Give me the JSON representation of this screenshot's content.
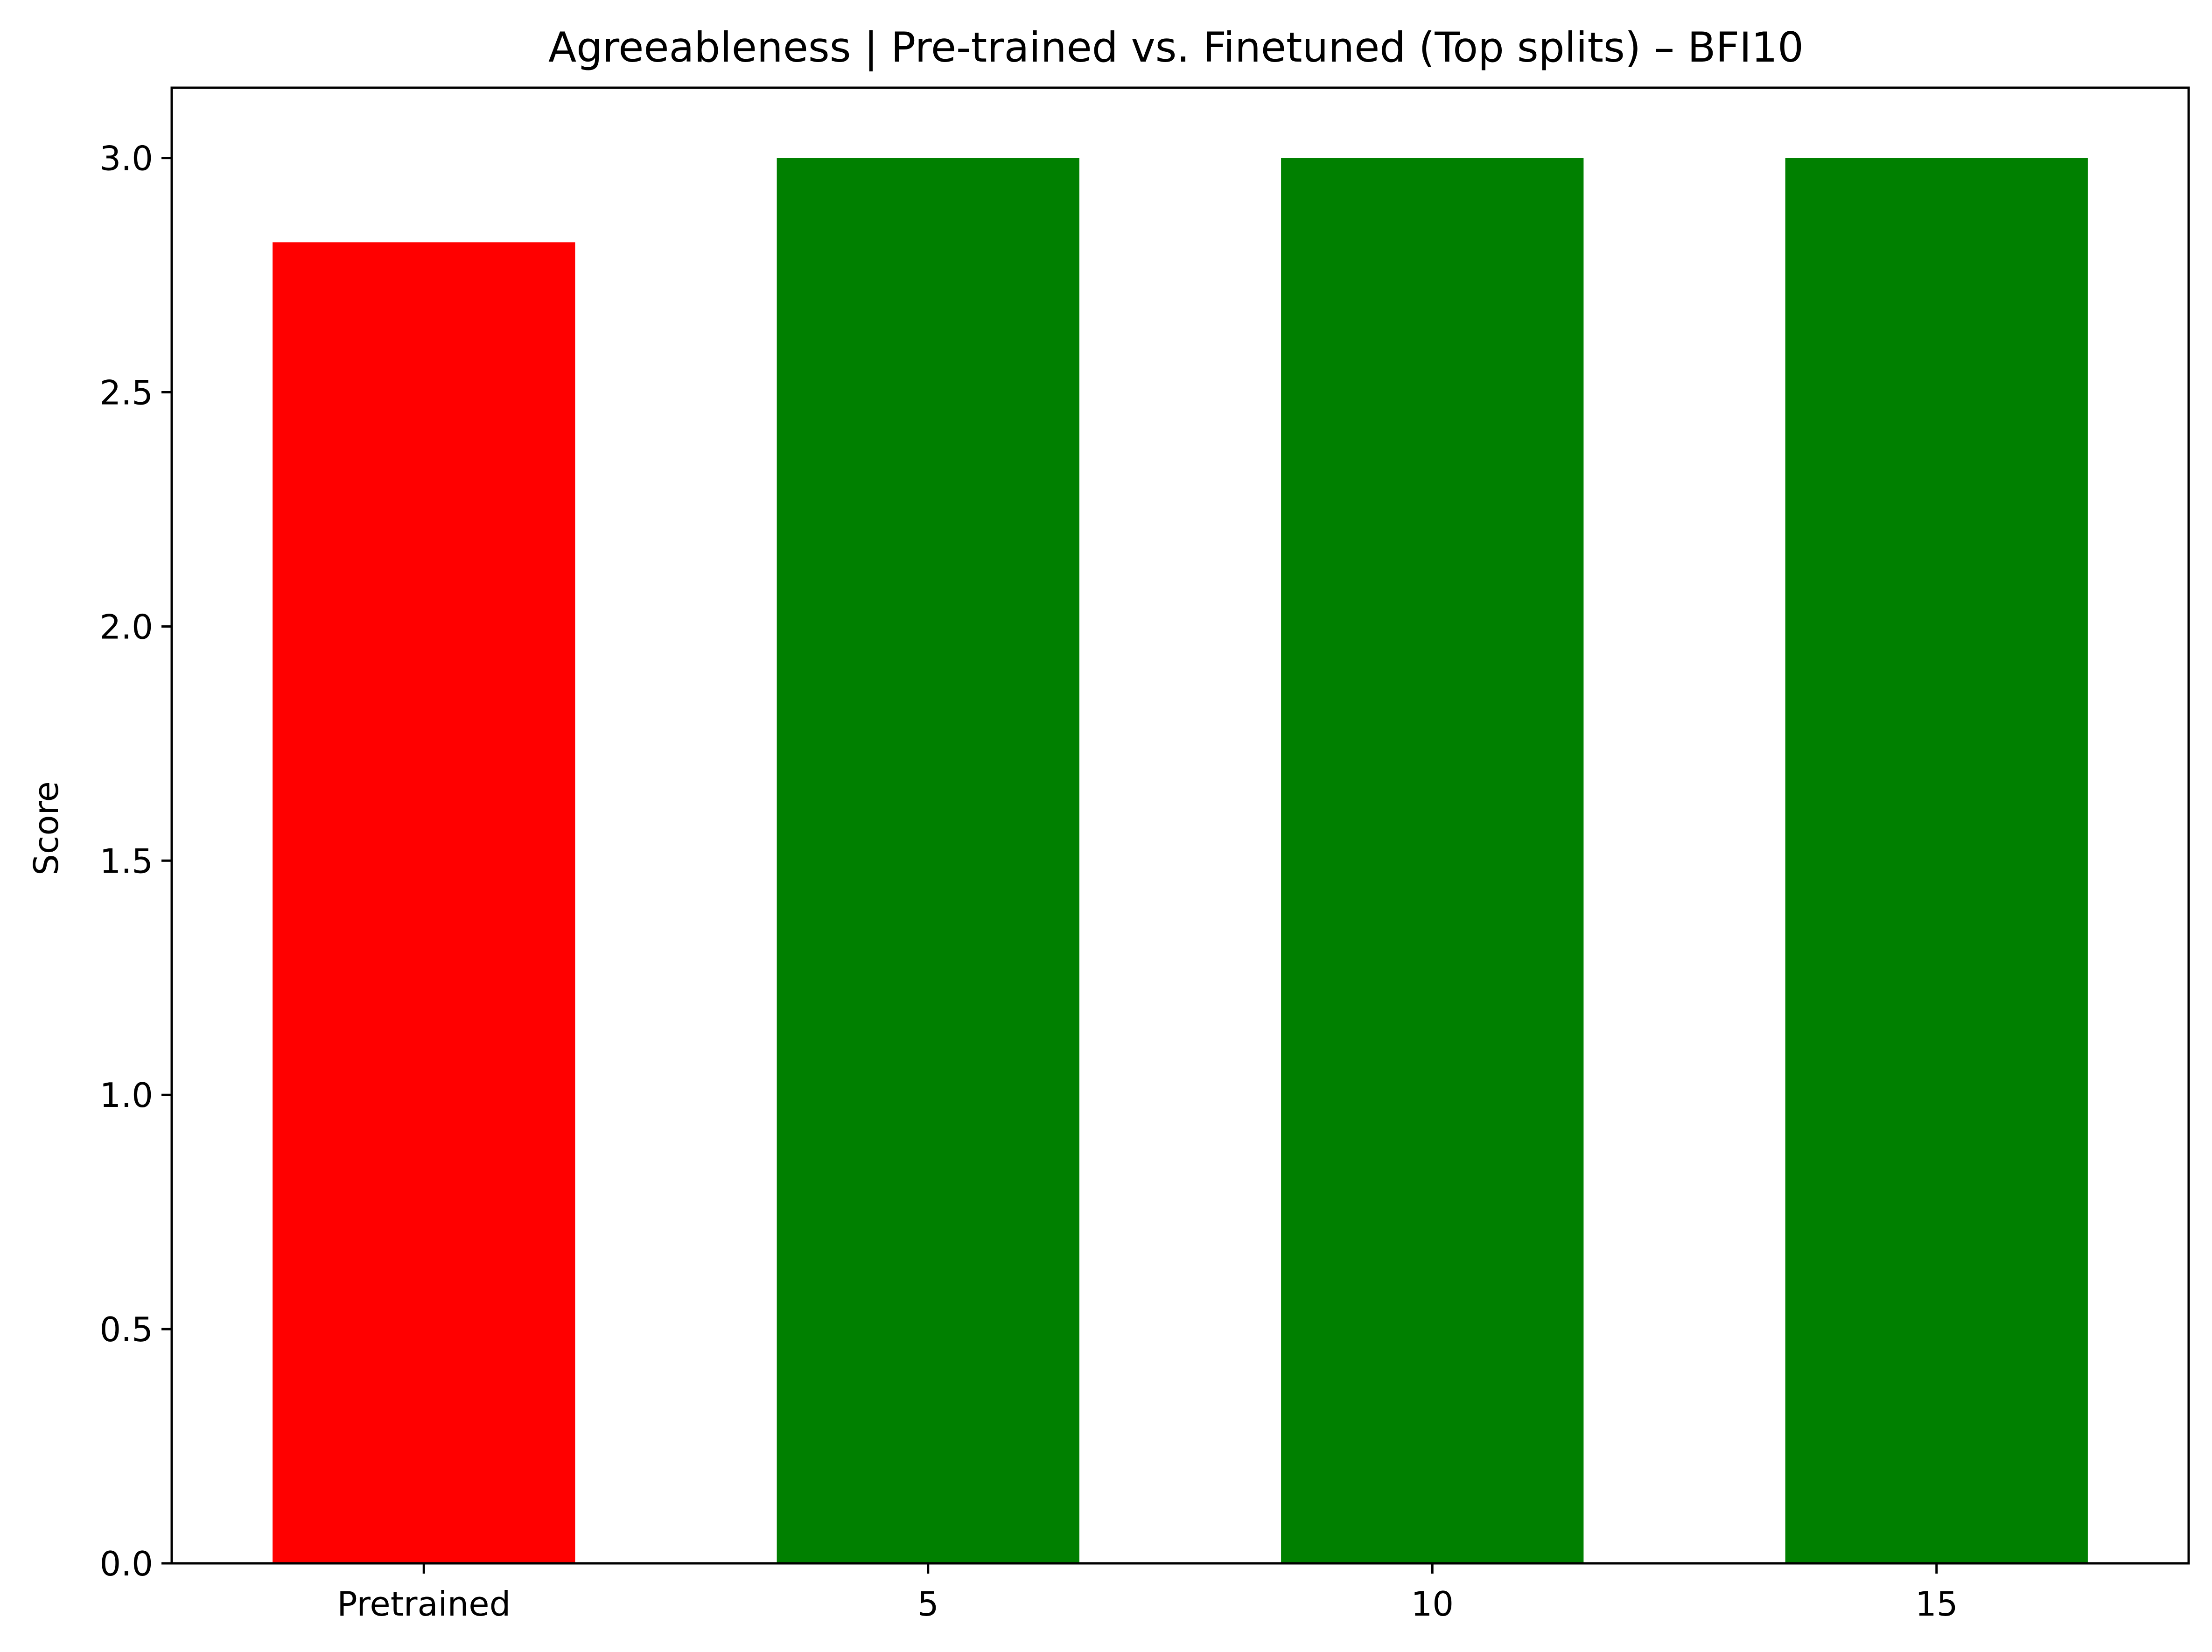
{
  "chart_data": {
    "type": "bar",
    "title": "Agreeableness | Pre-trained vs. Finetuned (Top splits) – BFI10",
    "xlabel": "",
    "ylabel": "Score",
    "categories": [
      "Pretrained",
      "5",
      "10",
      "15"
    ],
    "values": [
      2.82,
      3.0,
      3.0,
      3.0
    ],
    "bar_colors": [
      "#ff0000",
      "#008000",
      "#008000",
      "#008000"
    ],
    "ylim": [
      0,
      3.15
    ],
    "yticks": [
      0.0,
      0.5,
      1.0,
      1.5,
      2.0,
      2.5,
      3.0
    ],
    "ytick_labels": [
      "0.0",
      "0.5",
      "1.0",
      "1.5",
      "2.0",
      "2.5",
      "3.0"
    ],
    "grid": false,
    "legend": "none"
  }
}
